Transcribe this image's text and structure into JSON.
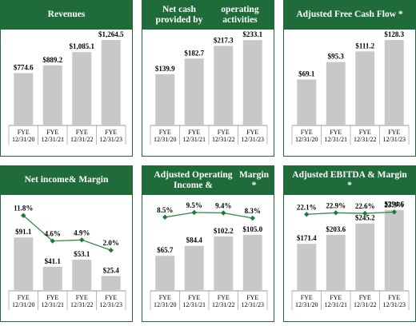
{
  "chart_data": [
    {
      "type": "bar",
      "title": "Revenues",
      "categories": [
        "FYE\n12/31/20",
        "FYE\n12/31/21",
        "FYE\n12/31/22",
        "FYE\n12/31/23"
      ],
      "values": [
        774.6,
        889.2,
        1085.1,
        1264.5
      ],
      "value_labels": [
        "$774.6",
        "$889.2",
        "$1,085.1",
        "$1,264.5"
      ],
      "ylim": [
        0,
        1300
      ]
    },
    {
      "type": "bar",
      "title": "Net cash provided by\noperating activities",
      "categories": [
        "FYE\n12/31/20",
        "FYE\n12/31/21",
        "FYE\n12/31/22",
        "FYE\n12/31/23"
      ],
      "values": [
        139.9,
        182.7,
        217.3,
        233.1
      ],
      "value_labels": [
        "$139.9",
        "$182.7",
        "$217.3",
        "$233.1"
      ],
      "ylim": [
        0,
        240
      ]
    },
    {
      "type": "bar",
      "title": "Adjusted Free Cash Flow *",
      "categories": [
        "FYE\n12/31/20",
        "FYE\n12/31/21",
        "FYE\n12/31/22",
        "FYE\n12/31/23"
      ],
      "values": [
        69.1,
        95.3,
        111.2,
        128.3
      ],
      "value_labels": [
        "$69.1",
        "$95.3",
        "$111.2",
        "$128.3"
      ],
      "ylim": [
        0,
        132
      ]
    },
    {
      "type": "bar",
      "title": "Net income\n& Margin",
      "categories": [
        "FYE\n12/31/20",
        "FYE\n12/31/21",
        "FYE\n12/31/22",
        "FYE\n12/31/23"
      ],
      "values": [
        91.1,
        41.1,
        53.1,
        25.4
      ],
      "value_labels": [
        "$91.1",
        "$41.1",
        "$53.1",
        "$25.4"
      ],
      "ylim": [
        0,
        150
      ],
      "margin_series": {
        "values": [
          11.8,
          4.6,
          4.9,
          2.0
        ],
        "labels": [
          "11.8%",
          "4.6%",
          "4.9%",
          "2.0%"
        ],
        "ylim": [
          0,
          14
        ]
      }
    },
    {
      "type": "bar",
      "title": "Adjusted Operating Income &\nMargin *",
      "categories": [
        "FYE\n12/31/20",
        "FYE\n12/31/21",
        "FYE\n12/31/22",
        "FYE\n12/31/23"
      ],
      "values": [
        65.7,
        84.4,
        102.2,
        105.0
      ],
      "value_labels": [
        "$65.7",
        "$84.4",
        "$102.2",
        "$105.0"
      ],
      "ylim": [
        0,
        165
      ],
      "margin_series": {
        "values": [
          8.5,
          9.5,
          9.4,
          8.3
        ],
        "labels": [
          "8.5%",
          "9.5%",
          "9.4%",
          "8.3%"
        ],
        "ylim": [
          0,
          10.5
        ]
      }
    },
    {
      "type": "bar",
      "title": "Adjusted EBITDA & Margin *",
      "categories": [
        "FYE\n12/31/20",
        "FYE\n12/31/21",
        "FYE\n12/31/22",
        "FYE\n12/31/23"
      ],
      "values": [
        171.4,
        203.6,
        245.2,
        294.6
      ],
      "value_labels": [
        "$171.4",
        "$203.6",
        "$245.2",
        "$294.6"
      ],
      "ylim": [
        0,
        320
      ],
      "margin_series": {
        "values": [
          22.1,
          22.9,
          22.6,
          23.3
        ],
        "labels": [
          "22.1%",
          "22.9%",
          "22.6%",
          "23.3%"
        ],
        "ylim": [
          0,
          25.5
        ]
      }
    }
  ]
}
